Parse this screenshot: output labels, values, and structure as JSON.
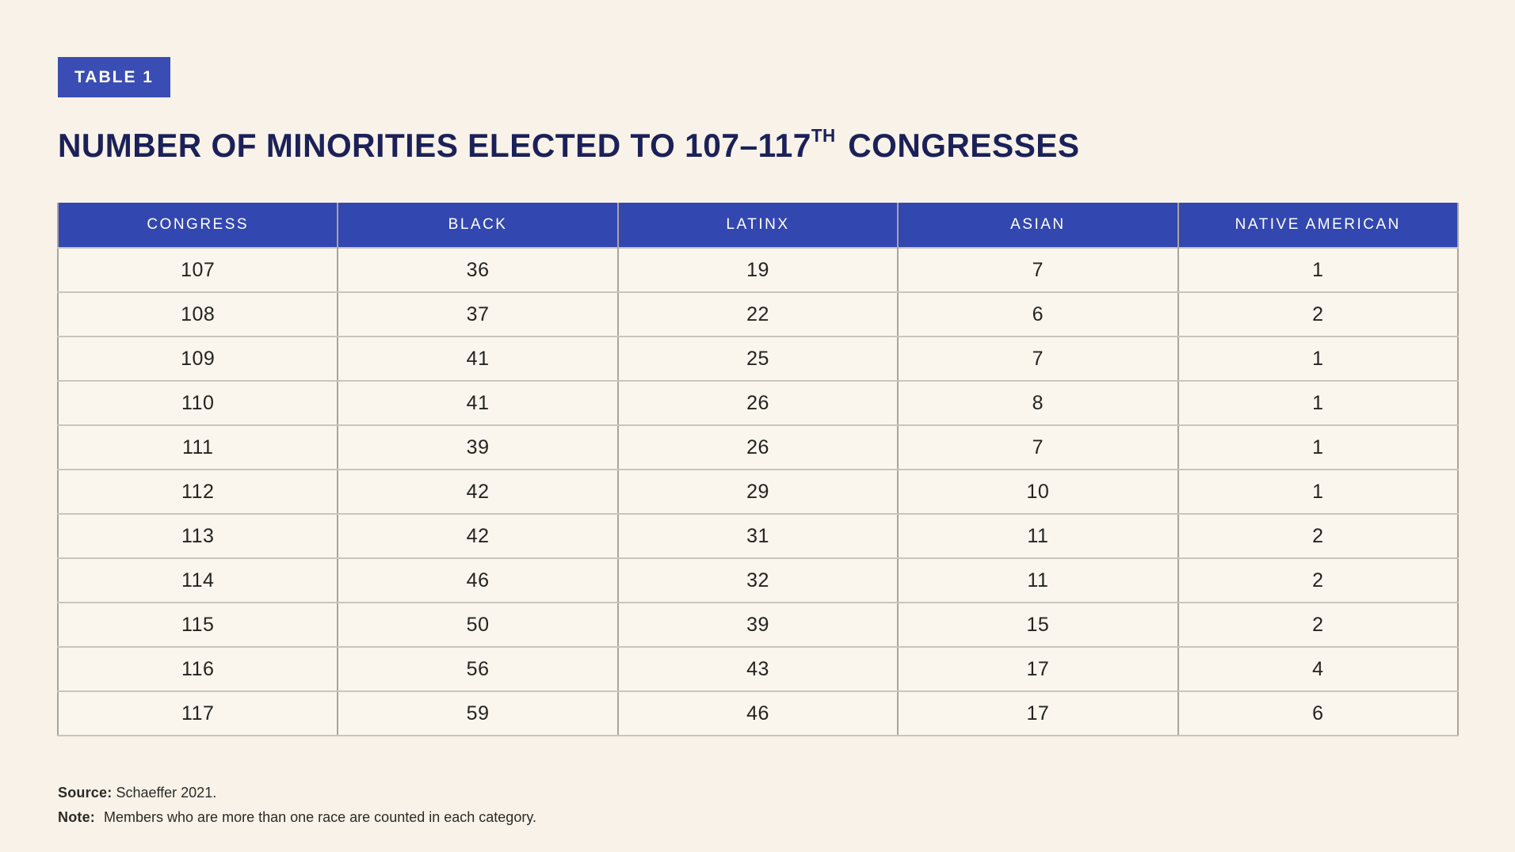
{
  "badge": {
    "label": "TABLE 1"
  },
  "title": {
    "prefix": "NUMBER OF MINORITIES ELECTED TO 107–117",
    "superscript": "TH",
    "suffix": "CONGRESSES"
  },
  "chart_data": {
    "type": "table",
    "title": "Number of Minorities Elected to 107–117th Congresses",
    "columns": [
      "CONGRESS",
      "BLACK",
      "LATINX",
      "ASIAN",
      "NATIVE AMERICAN"
    ],
    "rows": [
      [
        107,
        36,
        19,
        7,
        1
      ],
      [
        108,
        37,
        22,
        6,
        2
      ],
      [
        109,
        41,
        25,
        7,
        1
      ],
      [
        110,
        41,
        26,
        8,
        1
      ],
      [
        111,
        39,
        26,
        7,
        1
      ],
      [
        112,
        42,
        29,
        10,
        1
      ],
      [
        113,
        42,
        31,
        11,
        2
      ],
      [
        114,
        46,
        32,
        11,
        2
      ],
      [
        115,
        50,
        39,
        15,
        2
      ],
      [
        116,
        56,
        43,
        17,
        4
      ],
      [
        117,
        59,
        46,
        17,
        6
      ]
    ]
  },
  "footer": {
    "source_label": "Source:",
    "source_text": "Schaeffer 2021.",
    "note_label": "Note:",
    "note_text": "Members who are more than one race are counted in each category."
  },
  "colors": {
    "page_background": "#f8f2e9",
    "cell_background": "#faf6ee",
    "header_blue": "#3347b0",
    "badge_blue": "#3a4db4",
    "title_navy": "#1b2158",
    "border_vertical": "#a9a59e",
    "border_horizontal": "#c9c5bd",
    "body_text": "#24231f",
    "note_text": "#2b2a26"
  }
}
